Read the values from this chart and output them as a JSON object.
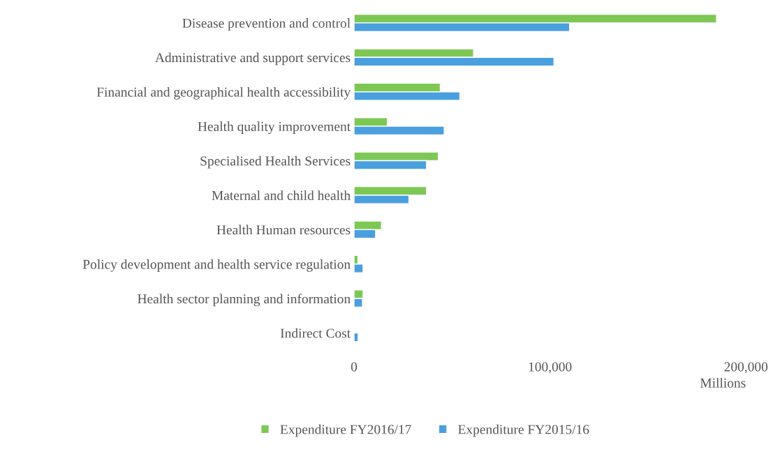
{
  "chart_data": {
    "type": "bar",
    "orientation": "horizontal",
    "xlabel": "Millions",
    "categories": [
      "Disease prevention and control",
      "Administrative and support services",
      "Financial and geographical health accessibility",
      "Health quality improvement",
      "Specialised Health Services",
      "Maternal and child health",
      "Health Human resources",
      "Policy development and health service regulation",
      "Health sector planning and information",
      "Indirect Cost"
    ],
    "series": [
      {
        "name": "Expenditure FY2016/17",
        "color": "#7dc855",
        "values": [
          185000,
          61000,
          44000,
          17000,
          43000,
          37000,
          14000,
          2000,
          4600,
          null
        ]
      },
      {
        "name": "Expenditure FY2015/16",
        "color": "#4a9fdf",
        "values": [
          110000,
          102000,
          54000,
          46000,
          37000,
          28000,
          11000,
          4600,
          4300,
          2100
        ]
      }
    ],
    "xlim": [
      0,
      200000
    ],
    "xticks": [
      0,
      {
        "value": 100000,
        "label": "100,000"
      },
      {
        "value": 200000,
        "label": "200,000"
      }
    ],
    "grid": false,
    "legend": "bottom"
  }
}
